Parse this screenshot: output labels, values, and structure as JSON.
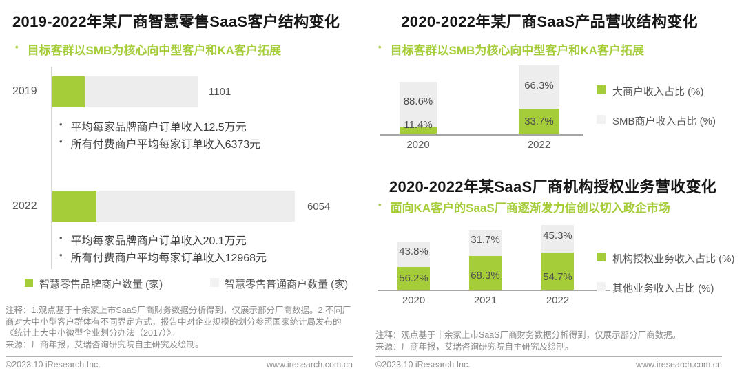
{
  "colors": {
    "accent_green": "#a5cd39",
    "bar_gray": "#ededed",
    "axis_gray": "#a6a6a6",
    "note_gray": "#8a8a8a"
  },
  "left_panel": {
    "title": "2019-2022年某厂商智慧零售SaaS客户结构变化",
    "insight": "目标客群以SMB为核心向中型客户和KA客户拓展",
    "rows": [
      {
        "year": "2019",
        "value": "1101",
        "bullet1": "平均每家品牌商户订单收入12.5万元",
        "bullet2": "所有付费商户平均每家订单收入6373元"
      },
      {
        "year": "2022",
        "value": "6054",
        "bullet1": "平均每家品牌商户订单收入20.1万元",
        "bullet2": "所有付费商户平均每家订单收入12968元"
      }
    ],
    "legend_brand": "智慧零售品牌商户数量 (家)",
    "legend_normal": "智慧零售普通商户数量 (家)",
    "note": "注释：1.观点基于十余家上市SaaS厂商财务数据分析得到，仅展示部分厂商数据。2.不同厂商对大中小型客户群体有不同界定方式，报告中对企业规模的划分参照国家统计局发布的《统计上大中小微型企业划分办法（2017）》。",
    "source": "来源：厂商年报，艾瑞咨询研究院自主研究及绘制。"
  },
  "right_top": {
    "title": "2020-2022年某厂商SaaS产品营收结构变化",
    "insight": "目标客群以SMB为核心向中型客户和KA客户拓展",
    "bars": [
      {
        "year": "2020",
        "gray_label": "88.6%",
        "green_label": "11.4%"
      },
      {
        "year": "2022",
        "gray_label": "66.3%",
        "green_label": "33.7%"
      }
    ],
    "legend_green": "大商户收入占比 (%)",
    "legend_gray": "SMB商户收入占比 (%)"
  },
  "right_bottom": {
    "title": "2020-2022年某SaaS厂商机构授权业务营收变化",
    "insight": "面向KA客户的SaaS厂商逐渐发力信创以切入政企市场",
    "bars": [
      {
        "year": "2020",
        "gray_label": "43.8%",
        "green_label": "56.2%"
      },
      {
        "year": "2021",
        "gray_label": "31.7%",
        "green_label": "68.3%"
      },
      {
        "year": "2022",
        "gray_label": "45.3%",
        "green_label": "54.7%"
      }
    ],
    "legend_green": "机构授权业务收入占比 (%)",
    "legend_gray": "其他业务收入占比 (%)",
    "note": "注释：观点基于十余家上市SaaS厂商财务数据分析得到，仅展示部分厂商数据。",
    "source": "来源：厂商年报，艾瑞咨询研究院自主研究及绘制。"
  },
  "footer": {
    "copyright": "©2023.10 iResearch Inc.",
    "website": "www.iresearch.com.cn"
  },
  "chart_data": [
    {
      "type": "bar",
      "orientation": "horizontal",
      "title": "2019-2022年某厂商智慧零售SaaS客户结构变化",
      "subtitle": "目标客群以SMB为核心向中型客户和KA客户拓展",
      "categories": [
        "2019",
        "2022"
      ],
      "series": [
        {
          "name": "智慧零售品牌商户数量 (家)",
          "color": "#a5cd39",
          "values": [
            null,
            null
          ]
        },
        {
          "name": "智慧零售普通商户数量 (家)",
          "color": "#ededed",
          "values": [
            1101,
            6054
          ]
        }
      ],
      "bar_end_labels": [
        "1101",
        "6054"
      ],
      "annotations": [
        "2019：平均每家品牌商户订单收入12.5万元；所有付费商户平均每家订单收入6373元",
        "2022：平均每家品牌商户订单收入20.1万元；所有付费商户平均每家订单收入12968元"
      ],
      "legend_position": "bottom",
      "grid": false
    },
    {
      "type": "bar",
      "subtype": "stacked",
      "title": "2020-2022年某厂商SaaS产品营收结构变化",
      "subtitle": "目标客群以SMB为核心向中型客户和KA客户拓展",
      "categories": [
        "2020",
        "2022"
      ],
      "series": [
        {
          "name": "大商户收入占比 (%)",
          "color": "#a5cd39",
          "values": [
            11.4,
            33.7
          ]
        },
        {
          "name": "SMB商户收入占比 (%)",
          "color": "#ededed",
          "values": [
            88.6,
            66.3
          ]
        }
      ],
      "unit": "%",
      "legend_position": "right",
      "grid": false
    },
    {
      "type": "bar",
      "subtype": "stacked",
      "title": "2020-2022年某SaaS厂商机构授权业务营收变化",
      "subtitle": "面向KA客户的SaaS厂商逐渐发力信创以切入政企市场",
      "categories": [
        "2020",
        "2021",
        "2022"
      ],
      "series": [
        {
          "name": "机构授权业务收入占比 (%)",
          "color": "#a5cd39",
          "values": [
            56.2,
            68.3,
            54.7
          ]
        },
        {
          "name": "其他业务收入占比 (%)",
          "color": "#ededed",
          "values": [
            43.8,
            31.7,
            45.3
          ]
        }
      ],
      "unit": "%",
      "legend_position": "right",
      "grid": false
    }
  ]
}
